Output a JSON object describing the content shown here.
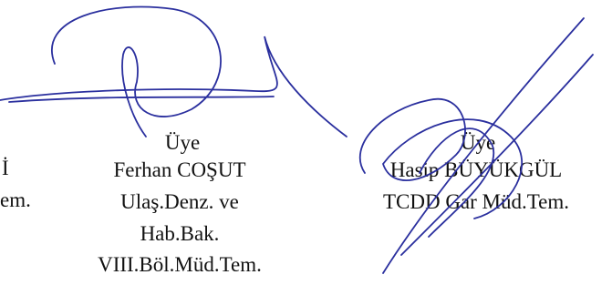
{
  "columns": [
    {
      "lines": [
        "İ",
        "em."
      ]
    },
    {
      "lines": [
        "Üye",
        "Ferhan COŞUT",
        "Ulaş.Denz. ve",
        "Hab.Bak.",
        "VIII.Böl.Müd.Tem."
      ]
    },
    {
      "lines": [
        "Üye",
        "Hasip BÜYÜKGÜL",
        "TCDD Gar Müd.Tem."
      ]
    }
  ]
}
